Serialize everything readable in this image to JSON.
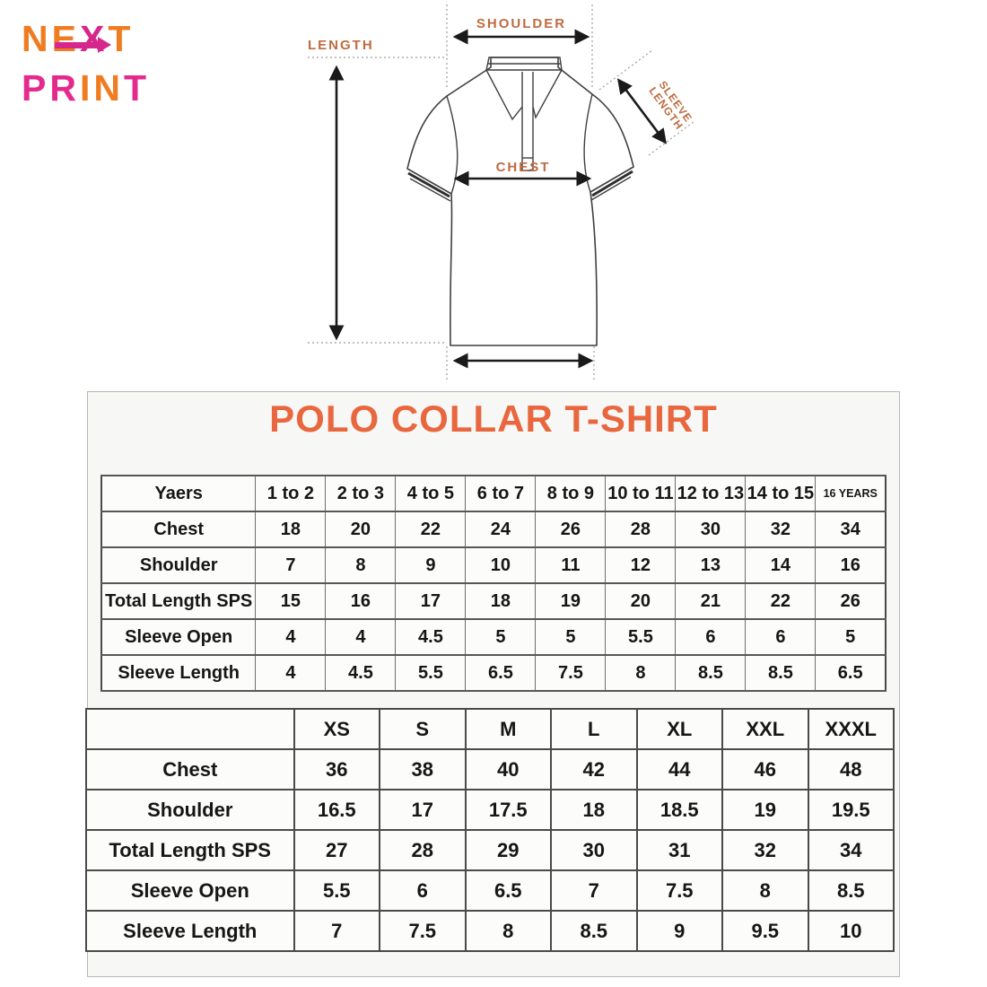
{
  "logo": {
    "line1": [
      {
        "ch": "N",
        "color": "#f07c22"
      },
      {
        "ch": "E",
        "color": "#f07c22"
      },
      {
        "ch": "X",
        "color": "#d6288c"
      },
      {
        "ch": "T",
        "color": "#f07c22"
      }
    ],
    "line2": [
      {
        "ch": "P",
        "color": "#e52a8e"
      },
      {
        "ch": "R",
        "color": "#e52a8e"
      },
      {
        "ch": "I",
        "color": "#f07c22"
      },
      {
        "ch": "N",
        "color": "#f07c22"
      },
      {
        "ch": "T",
        "color": "#e52a8e"
      }
    ],
    "arrow_color": "#d6288c"
  },
  "diagram": {
    "label_color": "#bf6b40",
    "labels": {
      "length": "LENGTH",
      "shoulder": "SHOULDER",
      "sleeve_line1": "SLEEVE",
      "sleeve_line2": "LENGTH",
      "chest": "CHEST"
    }
  },
  "section": {
    "title": "POLO COLLAR T-SHIRT",
    "title_color": "#e8673f"
  },
  "kids_table": {
    "header": [
      "Yaers",
      "1 to 2",
      "2 to 3",
      "4 to 5",
      "6 to 7",
      "8 to 9",
      "10 to 11",
      "12 to 13",
      "14 to 15",
      "16 YEARS"
    ],
    "rows": [
      {
        "label": "Chest",
        "values": [
          "18",
          "20",
          "22",
          "24",
          "26",
          "28",
          "30",
          "32",
          "34"
        ]
      },
      {
        "label": "Shoulder",
        "values": [
          "7",
          "8",
          "9",
          "10",
          "11",
          "12",
          "13",
          "14",
          "16"
        ]
      },
      {
        "label": "Total Length SPS",
        "values": [
          "15",
          "16",
          "17",
          "18",
          "19",
          "20",
          "21",
          "22",
          "26"
        ]
      },
      {
        "label": "Sleeve Open",
        "values": [
          "4",
          "4",
          "4.5",
          "5",
          "5",
          "5.5",
          "6",
          "6",
          "5"
        ]
      },
      {
        "label": "Sleeve Length",
        "values": [
          "4",
          "4.5",
          "5.5",
          "6.5",
          "7.5",
          "8",
          "8.5",
          "8.5",
          "6.5"
        ]
      }
    ]
  },
  "adult_table": {
    "header": [
      "",
      "XS",
      "S",
      "M",
      "L",
      "XL",
      "XXL",
      "XXXL"
    ],
    "rows": [
      {
        "label": "Chest",
        "values": [
          "36",
          "38",
          "40",
          "42",
          "44",
          "46",
          "48"
        ]
      },
      {
        "label": "Shoulder",
        "values": [
          "16.5",
          "17",
          "17.5",
          "18",
          "18.5",
          "19",
          "19.5"
        ]
      },
      {
        "label": "Total Length SPS",
        "values": [
          "27",
          "28",
          "29",
          "30",
          "31",
          "32",
          "34"
        ]
      },
      {
        "label": "Sleeve Open",
        "values": [
          "5.5",
          "6",
          "6.5",
          "7",
          "7.5",
          "8",
          "8.5"
        ]
      },
      {
        "label": "Sleeve Length",
        "values": [
          "7",
          "7.5",
          "8",
          "8.5",
          "9",
          "9.5",
          "10"
        ]
      }
    ]
  }
}
